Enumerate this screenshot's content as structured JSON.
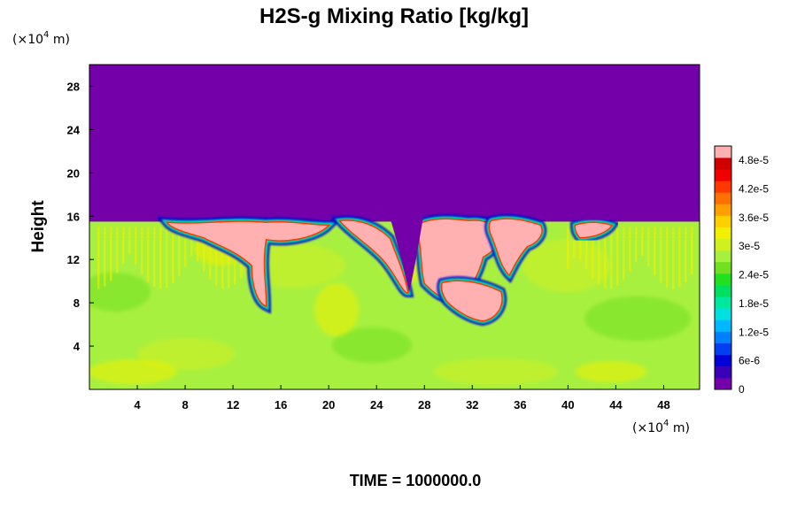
{
  "chart_data": {
    "type": "heatmap",
    "title": "H2S-g Mixing Ratio [kg/kg]",
    "ylabel": "Height",
    "x_unit_prefix": "(×10",
    "x_unit_exp": "4",
    "x_unit_suffix": " m)",
    "y_unit_prefix": "(×10",
    "y_unit_exp": "4",
    "y_unit_suffix": " m)",
    "xlim": [
      0,
      51
    ],
    "ylim": [
      0,
      30
    ],
    "x_ticks": [
      "4",
      "8",
      "12",
      "16",
      "20",
      "24",
      "28",
      "32",
      "36",
      "40",
      "44",
      "48"
    ],
    "x_tick_values": [
      4,
      8,
      12,
      16,
      20,
      24,
      28,
      32,
      36,
      40,
      44,
      48
    ],
    "y_ticks": [
      "4",
      "8",
      "12",
      "16",
      "20",
      "24",
      "28"
    ],
    "y_tick_values": [
      4,
      8,
      12,
      16,
      20,
      24,
      28
    ],
    "colorbar": {
      "min": 0,
      "max": 5.1e-05,
      "tick_labels": [
        "0",
        "6e-6",
        "1.2e-5",
        "1.8e-5",
        "2.4e-5",
        "3e-5",
        "3.6e-5",
        "4.2e-5",
        "4.8e-5"
      ],
      "tick_values": [
        0,
        6e-06,
        1.2e-05,
        1.8e-05,
        2.4e-05,
        3e-05,
        3.6e-05,
        4.2e-05,
        4.8e-05
      ],
      "colors": [
        "#7300a8",
        "#3a00b8",
        "#0000d8",
        "#0040f0",
        "#0080ff",
        "#00b8ff",
        "#00e0e0",
        "#00e8a0",
        "#00e060",
        "#20e020",
        "#70e020",
        "#a8f040",
        "#d0f020",
        "#f0f000",
        "#ffd000",
        "#ffa000",
        "#ff7000",
        "#ff3800",
        "#f00000",
        "#d00000",
        "#ffb0b0"
      ]
    },
    "field": {
      "background_value": 2.8e-05,
      "top_value": 0,
      "interface_height": 15.5,
      "saturated_value": 5.1e-05
    }
  },
  "footer": {
    "time_label": "TIME = 1000000.0"
  }
}
